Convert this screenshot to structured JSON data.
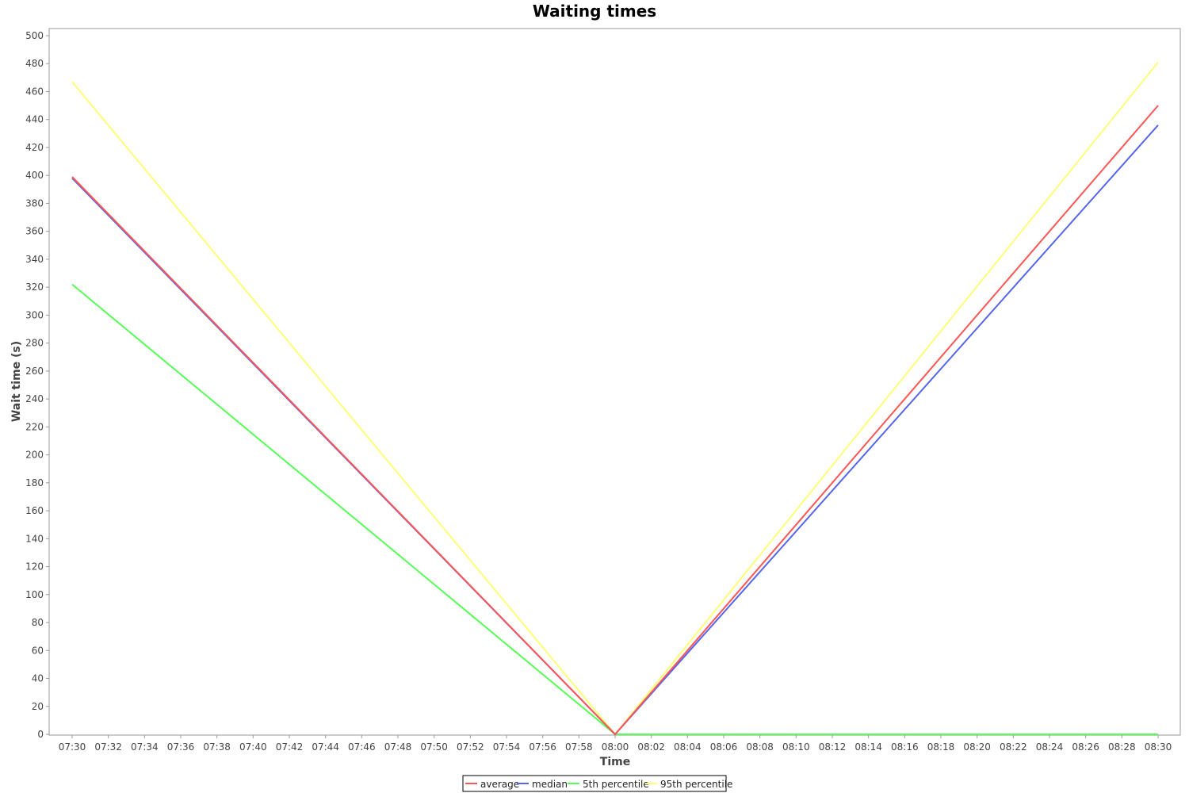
{
  "chart_data": {
    "type": "line",
    "title": "Waiting times",
    "xlabel": "Time",
    "ylabel": "Wait time (s)",
    "x": [
      "07:30",
      "08:00",
      "08:30"
    ],
    "xticks": [
      "07:30",
      "07:32",
      "07:34",
      "07:36",
      "07:38",
      "07:40",
      "07:42",
      "07:44",
      "07:46",
      "07:48",
      "07:50",
      "07:52",
      "07:54",
      "07:56",
      "07:58",
      "08:00",
      "08:02",
      "08:04",
      "08:06",
      "08:08",
      "08:10",
      "08:12",
      "08:14",
      "08:16",
      "08:18",
      "08:20",
      "08:22",
      "08:24",
      "08:26",
      "08:28",
      "08:30"
    ],
    "ylim": [
      0,
      500
    ],
    "yticks": [
      0,
      20,
      40,
      60,
      80,
      100,
      120,
      140,
      160,
      180,
      200,
      220,
      240,
      260,
      280,
      300,
      320,
      340,
      360,
      380,
      400,
      420,
      440,
      460,
      480,
      500
    ],
    "grid": false,
    "legend": "bottom-center",
    "series": [
      {
        "name": "average",
        "color": "#ff5555",
        "values": [
          399,
          0,
          450
        ]
      },
      {
        "name": "median",
        "color": "#5566ee",
        "values": [
          398,
          0,
          436
        ]
      },
      {
        "name": "5th percentile",
        "color": "#55ff55",
        "values": [
          322,
          0,
          0
        ]
      },
      {
        "name": "95th percentile",
        "color": "#ffff77",
        "values": [
          467,
          0,
          481
        ]
      }
    ]
  }
}
